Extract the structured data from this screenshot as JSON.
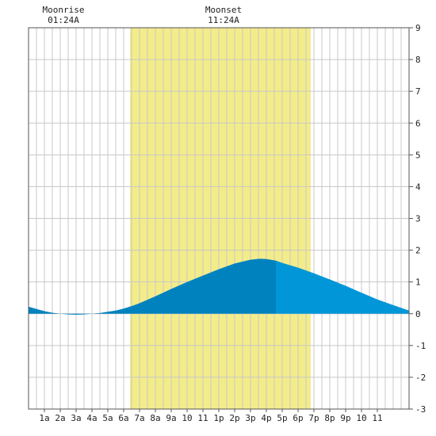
{
  "chart_data": {
    "type": "area",
    "title": "",
    "xlabel": "",
    "ylabel": "",
    "x_range": [
      0,
      24
    ],
    "ylim": [
      -3,
      9
    ],
    "y_ticks": [
      -3,
      -2,
      -1,
      0,
      1,
      2,
      3,
      4,
      5,
      6,
      7,
      8,
      9
    ],
    "x_ticks": [
      {
        "h": 1,
        "label": "1a"
      },
      {
        "h": 2,
        "label": "2a"
      },
      {
        "h": 3,
        "label": "3a"
      },
      {
        "h": 4,
        "label": "4a"
      },
      {
        "h": 5,
        "label": "5a"
      },
      {
        "h": 6,
        "label": "6a"
      },
      {
        "h": 7,
        "label": "7a"
      },
      {
        "h": 8,
        "label": "8a"
      },
      {
        "h": 9,
        "label": "9a"
      },
      {
        "h": 10,
        "label": "10"
      },
      {
        "h": 11,
        "label": "11"
      },
      {
        "h": 12,
        "label": "1p"
      },
      {
        "h": 13,
        "label": "2p"
      },
      {
        "h": 14,
        "label": "3p"
      },
      {
        "h": 15,
        "label": "4p"
      },
      {
        "h": 16,
        "label": "5p"
      },
      {
        "h": 17,
        "label": "6p"
      },
      {
        "h": 18,
        "label": "7p"
      },
      {
        "h": 19,
        "label": "8p"
      },
      {
        "h": 20,
        "label": "9p"
      },
      {
        "h": 21,
        "label": "10"
      },
      {
        "h": 22,
        "label": "11"
      }
    ],
    "grid": true,
    "daylight_hours": [
      6.4,
      17.8
    ],
    "tide_curve": [
      [
        0,
        0.22
      ],
      [
        0.5,
        0.15
      ],
      [
        1,
        0.08
      ],
      [
        1.5,
        0.03
      ],
      [
        2,
        0.0
      ],
      [
        2.5,
        -0.02
      ],
      [
        3,
        -0.03
      ],
      [
        3.5,
        -0.02
      ],
      [
        4,
        0.0
      ],
      [
        4.5,
        0.02
      ],
      [
        5,
        0.06
      ],
      [
        5.5,
        0.1
      ],
      [
        6,
        0.16
      ],
      [
        6.5,
        0.24
      ],
      [
        7,
        0.33
      ],
      [
        8,
        0.55
      ],
      [
        9,
        0.78
      ],
      [
        10,
        1.0
      ],
      [
        11,
        1.2
      ],
      [
        12,
        1.4
      ],
      [
        13,
        1.58
      ],
      [
        14,
        1.7
      ],
      [
        14.6,
        1.73
      ],
      [
        15,
        1.72
      ],
      [
        15.6,
        1.67
      ],
      [
        16,
        1.6
      ],
      [
        17,
        1.45
      ],
      [
        18,
        1.27
      ],
      [
        19,
        1.08
      ],
      [
        20,
        0.88
      ],
      [
        21,
        0.66
      ],
      [
        22,
        0.45
      ],
      [
        23,
        0.27
      ],
      [
        24,
        0.1
      ]
    ],
    "shade_change_hour": 15.6,
    "annotations": [
      {
        "label": "Moonrise",
        "time": "01:24A"
      },
      {
        "label": "Moonset",
        "time": "11:24A"
      }
    ],
    "colors": {
      "daylight": "#f3ec8a",
      "tide_early": "#0082be",
      "tide_late": "#0096d8",
      "grid": "#c8c8c8",
      "axis": "#555555",
      "text": "#222222"
    }
  }
}
